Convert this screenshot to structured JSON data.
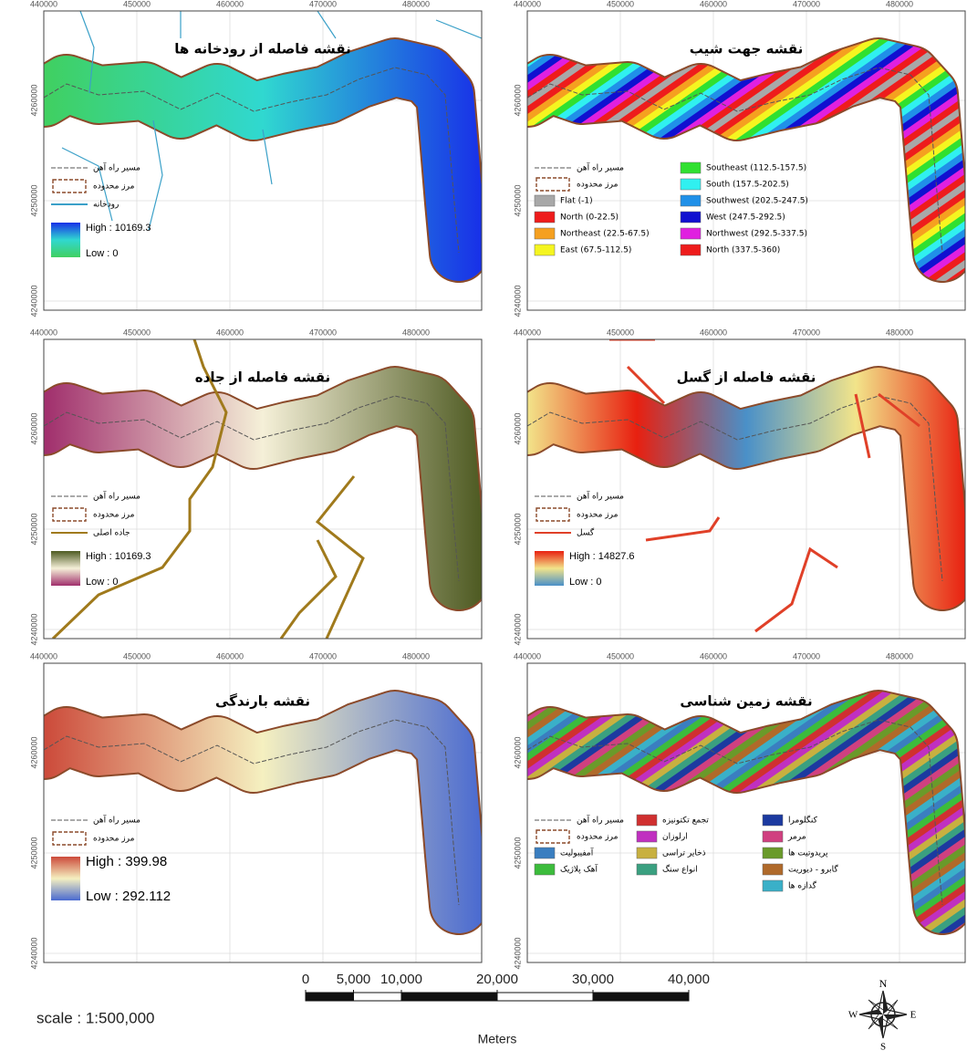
{
  "map_grid": {
    "xticks": [
      440000,
      450000,
      460000,
      470000,
      480000
    ],
    "yticks": [
      4260000,
      4250000,
      4240000
    ]
  },
  "panels": [
    {
      "title": "نقشه فاصله از رودخانه ها",
      "kind": "ramp",
      "legend": {
        "railway": "مسیر راه آهن",
        "boundary": "مرز محدوده",
        "layer": "رودخانه",
        "high": "High : 10169.3",
        "low": "Low : 0"
      },
      "ramp": [
        "#1830e8",
        "#30d8d0",
        "#40d060"
      ],
      "layer_color": "#3aa0c8"
    },
    {
      "title": "نقشه جهت شیب",
      "kind": "classes",
      "legend": {
        "railway": "مسیر راه آهن",
        "boundary": "مرز محدوده"
      },
      "classes": [
        {
          "label": "Flat (-1)",
          "color": "#a8a8a8"
        },
        {
          "label": "North (0-22.5)",
          "color": "#ee1c1c"
        },
        {
          "label": "Northeast (22.5-67.5)",
          "color": "#f5a020"
        },
        {
          "label": "East (67.5-112.5)",
          "color": "#f5f520"
        },
        {
          "label": "Southeast (112.5-157.5)",
          "color": "#30e030"
        },
        {
          "label": "South (157.5-202.5)",
          "color": "#30f0f0"
        },
        {
          "label": "Southwest (202.5-247.5)",
          "color": "#2090e8"
        },
        {
          "label": "West (247.5-292.5)",
          "color": "#1010d0"
        },
        {
          "label": "Northwest (292.5-337.5)",
          "color": "#e020e0"
        },
        {
          "label": "North (337.5-360)",
          "color": "#ee1c1c"
        }
      ]
    },
    {
      "title": "نقشه فاصله از جاده",
      "kind": "ramp",
      "legend": {
        "railway": "مسیر راه آهن",
        "boundary": "مرز محدوده",
        "layer": "جاده اصلی",
        "high": "High : 10169.3",
        "low": "Low : 0"
      },
      "ramp": [
        "#4e5a22",
        "#f5f0d8",
        "#a02e6c"
      ],
      "layer_color": "#a07a1c"
    },
    {
      "title": "نقشه فاصله از گسل",
      "kind": "ramp",
      "legend": {
        "railway": "مسیر راه آهن",
        "boundary": "مرز محدوده",
        "layer": "گسل",
        "high": "High : 14827.6",
        "low": "Low : 0"
      },
      "ramp": [
        "#e82010",
        "#f2e48a",
        "#4a90c8"
      ],
      "layer_color": "#e04028"
    },
    {
      "title": "نقشه بارندگی",
      "kind": "ramp",
      "legend": {
        "railway": "مسیر راه آهن",
        "boundary": "مرز محدوده",
        "high": "High : 399.98",
        "low": "Low : 292.112"
      },
      "ramp": [
        "#cc4a3a",
        "#f5f0c0",
        "#4a6ad0"
      ]
    },
    {
      "title": "نقشه زمین شناسی",
      "kind": "classes",
      "legend": {
        "railway": "مسیر راه آهن",
        "boundary": "مرز محدوده"
      },
      "classes": [
        {
          "label": "آمفیبولیت",
          "color": "#3a7ec0"
        },
        {
          "label": "آهک پلاژیک",
          "color": "#3cbc3c"
        },
        {
          "label": "تجمع تکتونیزه",
          "color": "#d03030"
        },
        {
          "label": "ارلوزان",
          "color": "#c030c0"
        },
        {
          "label": "ذخایر تراسی",
          "color": "#c8b040"
        },
        {
          "label": "انواع سنگ",
          "color": "#3aa080"
        },
        {
          "label": "کنگلومرا",
          "color": "#1c3aa0"
        },
        {
          "label": "مرمر",
          "color": "#d04080"
        },
        {
          "label": "پریدوتیت ها",
          "color": "#6a9a2a"
        },
        {
          "label": "گابرو - دیوریت",
          "color": "#b06a2a"
        },
        {
          "label": "گدازه ها",
          "color": "#3ab0c8"
        }
      ]
    }
  ],
  "scale_text": "scale : 1:500,000",
  "scale_bar": {
    "ticks": [
      0,
      {
        "value": 5000,
        "label": "5,000"
      },
      {
        "value": 10000,
        "label": "10,000"
      },
      {
        "value": 20000,
        "label": "20,000"
      },
      {
        "value": 30000,
        "label": "30,000"
      },
      {
        "value": 40000,
        "label": "40,000"
      }
    ],
    "unit": "Meters"
  },
  "compass": {
    "n": "N",
    "e": "E",
    "s": "S",
    "w": "W"
  }
}
